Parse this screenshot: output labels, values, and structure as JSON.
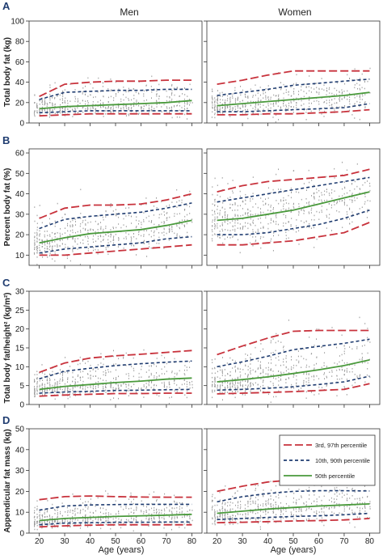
{
  "figure": {
    "column_titles": [
      "Men",
      "Women"
    ],
    "x_axis_label": "Age (years)",
    "legend": [
      {
        "label": "3rd, 97th percentile",
        "color": "#c8323c",
        "dash": "long"
      },
      {
        "label": "10th, 90th percentile",
        "color": "#1f3c70",
        "dash": "short"
      },
      {
        "label": "50th percentile",
        "color": "#4a9a3c",
        "dash": "solid"
      }
    ],
    "colors": {
      "red": "#c8323c",
      "blue": "#1f3c70",
      "green": "#4a9a3c",
      "points": "#9a9a9a"
    }
  },
  "chart_data": [
    {
      "panel": "A",
      "type": "scatter",
      "ylabel": "Total body fat (kg)",
      "ylim": [
        0,
        100
      ],
      "yticks": [
        0,
        20,
        40,
        60,
        80,
        100
      ],
      "xlim": [
        16,
        84
      ],
      "xticks": [
        20,
        30,
        40,
        50,
        60,
        70,
        80
      ],
      "men": {
        "x": [
          20,
          30,
          40,
          50,
          60,
          70,
          80
        ],
        "p3": [
          7,
          8,
          9,
          9,
          9,
          9,
          9
        ],
        "p10": [
          10,
          11,
          12,
          12,
          12,
          12,
          12
        ],
        "p50": [
          14,
          16,
          17,
          18,
          19,
          20,
          22
        ],
        "p90": [
          23,
          30,
          31,
          32,
          32,
          33,
          33
        ],
        "p97": [
          26,
          38,
          40,
          41,
          41,
          42,
          42
        ]
      },
      "women": {
        "x": [
          20,
          30,
          40,
          50,
          60,
          70,
          80
        ],
        "p3": [
          8,
          8,
          9,
          9,
          10,
          11,
          13
        ],
        "p10": [
          11,
          11,
          12,
          13,
          14,
          15,
          19
        ],
        "p50": [
          17,
          19,
          21,
          23,
          25,
          27,
          30
        ],
        "p90": [
          27,
          30,
          33,
          37,
          39,
          41,
          43
        ],
        "p97": [
          38,
          42,
          47,
          51,
          51,
          51,
          51
        ]
      }
    },
    {
      "panel": "B",
      "type": "scatter",
      "ylabel": "Percent body fat (%)",
      "ylim": [
        5,
        62
      ],
      "yticks": [
        10,
        20,
        30,
        40,
        50,
        60
      ],
      "xlim": [
        16,
        84
      ],
      "xticks": [
        20,
        30,
        40,
        50,
        60,
        70,
        80
      ],
      "men": {
        "x": [
          20,
          30,
          40,
          50,
          60,
          70,
          80
        ],
        "p3": [
          10,
          10,
          11,
          12,
          13,
          14,
          15
        ],
        "p10": [
          11,
          13,
          14,
          15,
          16,
          18,
          19
        ],
        "p50": [
          16,
          18.5,
          20.5,
          21.5,
          22.5,
          24.5,
          27
        ],
        "p90": [
          23,
          27.5,
          29,
          30,
          31,
          33,
          35.5
        ],
        "p97": [
          28,
          33,
          34.5,
          34.5,
          35,
          37,
          40
        ]
      },
      "women": {
        "x": [
          20,
          30,
          40,
          50,
          60,
          70,
          80
        ],
        "p3": [
          15,
          15,
          16,
          17,
          19,
          21,
          26
        ],
        "p10": [
          20,
          20,
          21,
          23,
          25,
          28,
          32
        ],
        "p50": [
          27,
          28,
          30,
          32,
          35,
          38,
          41
        ],
        "p90": [
          36,
          38,
          40,
          42,
          44,
          46,
          48
        ],
        "p97": [
          41,
          44,
          46,
          47,
          48,
          49,
          52
        ]
      }
    },
    {
      "panel": "C",
      "type": "scatter",
      "ylabel": "Total body fat/height² (kg/m²)",
      "ylim": [
        0,
        30
      ],
      "yticks": [
        0,
        5,
        10,
        15,
        20,
        25,
        30
      ],
      "xlim": [
        16,
        84
      ],
      "xticks": [
        20,
        30,
        40,
        50,
        60,
        70,
        80
      ],
      "men": {
        "x": [
          20,
          30,
          40,
          50,
          60,
          70,
          80
        ],
        "p3": [
          2.2,
          2.5,
          2.7,
          2.9,
          2.9,
          3,
          3
        ],
        "p10": [
          3,
          3.3,
          3.5,
          3.7,
          3.8,
          3.9,
          4
        ],
        "p50": [
          4,
          4.8,
          5.3,
          5.8,
          6.2,
          6.7,
          7
        ],
        "p90": [
          6.8,
          8.8,
          9.6,
          10.3,
          10.8,
          11.2,
          11.5
        ],
        "p97": [
          8.5,
          11,
          12.3,
          12.9,
          13.3,
          13.8,
          14.3
        ]
      },
      "women": {
        "x": [
          20,
          30,
          40,
          50,
          60,
          70,
          80
        ],
        "p3": [
          2.8,
          3,
          3.2,
          3.4,
          3.7,
          4,
          5.5
        ],
        "p10": [
          3.8,
          4,
          4.3,
          4.7,
          5.3,
          6,
          7.5
        ],
        "p50": [
          6,
          6.6,
          7.3,
          8.2,
          9.2,
          10.3,
          11.8
        ],
        "p90": [
          10,
          11.3,
          12.8,
          14.5,
          15.4,
          16.2,
          17.3
        ],
        "p97": [
          13.2,
          15.5,
          17.6,
          19.4,
          19.6,
          19.6,
          19.6
        ]
      }
    },
    {
      "panel": "D",
      "type": "scatter",
      "ylabel": "Appendicular fat mass (kg)",
      "ylim": [
        0,
        50
      ],
      "yticks": [
        0,
        10,
        20,
        30,
        40,
        50
      ],
      "xlim": [
        16,
        84
      ],
      "xticks": [
        20,
        30,
        40,
        50,
        60,
        70,
        80
      ],
      "men": {
        "x": [
          20,
          30,
          40,
          50,
          60,
          70,
          80
        ],
        "p3": [
          3,
          3.5,
          3.8,
          4,
          4,
          4,
          4
        ],
        "p10": [
          4,
          4.8,
          5,
          5.2,
          5.2,
          5.3,
          5.3
        ],
        "p50": [
          6,
          7,
          7.5,
          8,
          8.3,
          8.6,
          9
        ],
        "p90": [
          11,
          13,
          13.5,
          13.7,
          13.8,
          13.8,
          13.8
        ],
        "p97": [
          16,
          17.5,
          17.8,
          17.5,
          17.3,
          17.2,
          17.2
        ]
      },
      "women": {
        "x": [
          20,
          30,
          40,
          50,
          60,
          70,
          80
        ],
        "p3": [
          5,
          5.2,
          5.5,
          5.8,
          6,
          6.3,
          7
        ],
        "p10": [
          6.5,
          7,
          7.5,
          8,
          8.3,
          8.8,
          9.5
        ],
        "p50": [
          9.5,
          10.5,
          11.5,
          12.3,
          13,
          13.5,
          14
        ],
        "p90": [
          15,
          17.5,
          19,
          20,
          20.3,
          20.3,
          20.2
        ],
        "p97": [
          20,
          22.5,
          24.5,
          25.5,
          25.3,
          24.5,
          24
        ]
      }
    }
  ]
}
